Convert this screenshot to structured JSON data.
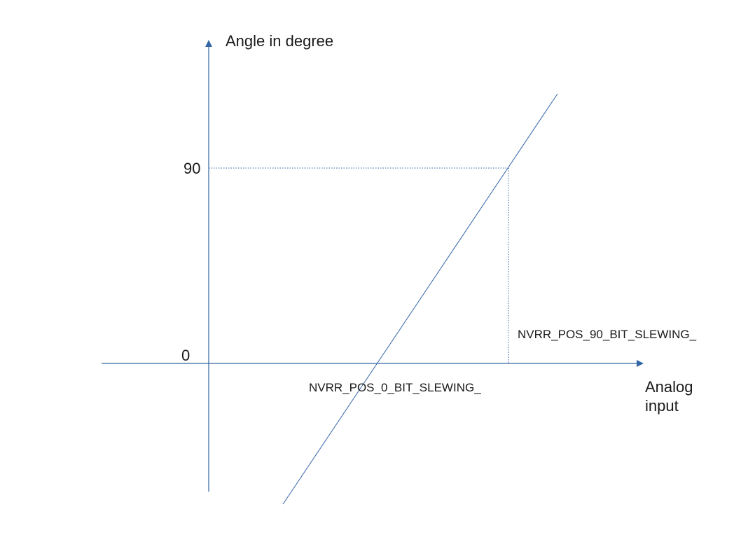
{
  "diagram": {
    "y_axis_label": "Angle in degree",
    "x_axis_label_line1": "Analog",
    "x_axis_label_line2": "input",
    "y_tick_90": "90",
    "y_tick_0": "0",
    "pos_0_label": "NVRR_POS_0_BIT_SLEWING_",
    "pos_90_label": "NVRR_POS_90_BIT_SLEWING_",
    "colors": {
      "axis": "#3465a4",
      "line": "#3465a4",
      "guide": "#3465a4",
      "text": "#1a1a1a"
    }
  }
}
